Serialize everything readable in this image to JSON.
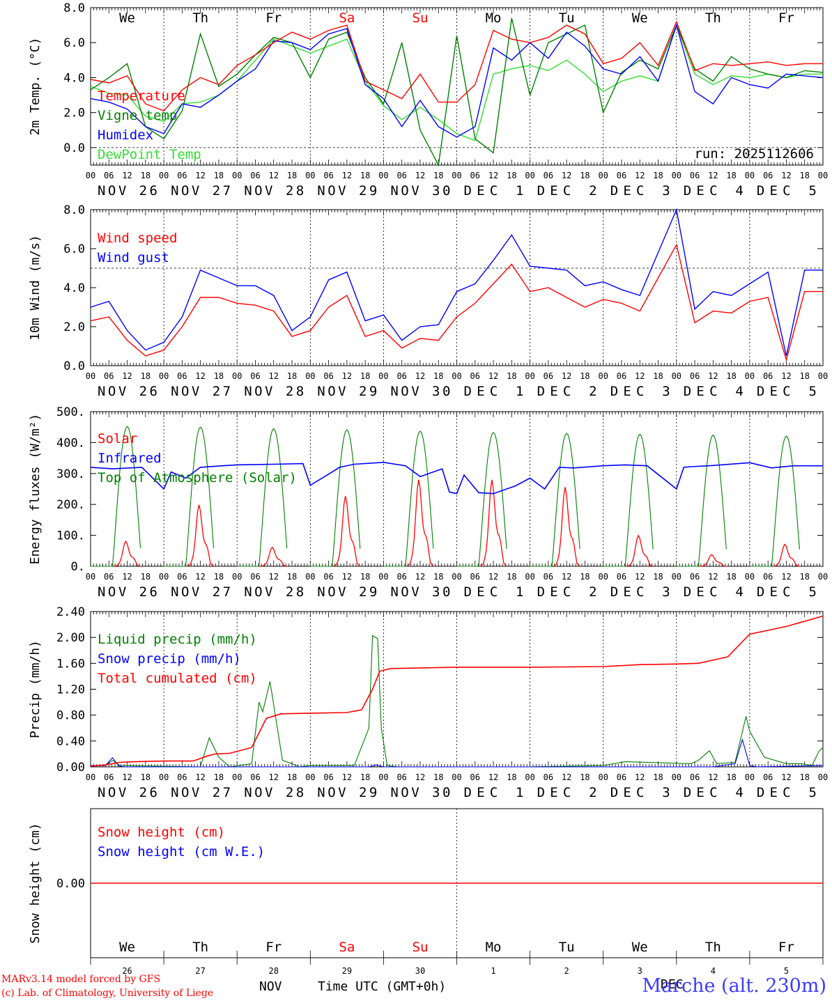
{
  "domain": "Chart",
  "run_label": "run: 2025112606",
  "footer": {
    "credit1": "MARv3.14 model forced by GFS",
    "credit2": "(c) Lab. of Climatology, University of Liege",
    "month_label": "NOV",
    "month_label2": "DEC",
    "time_label": "Time UTC (GMT+0h)",
    "station": "Marche (alt. 230m)"
  },
  "colors": {
    "red": "#ff0000",
    "green": "#008000",
    "blue": "#0000ff",
    "lightgreen": "#33dd33",
    "weekend": "#ff0000"
  },
  "hour_ticks": [
    "00",
    "06",
    "12",
    "18"
  ],
  "date_labels": [
    "NOV 26",
    "NOV 27",
    "NOV 28",
    "NOV 29",
    "NOV 30",
    "DEC 1",
    "DEC 2",
    "DEC 3",
    "DEC 4",
    "DEC 5"
  ],
  "weekdays": [
    {
      "label": "We",
      "weekend": false
    },
    {
      "label": "Th",
      "weekend": false
    },
    {
      "label": "Fr",
      "weekend": false
    },
    {
      "label": "Sa",
      "weekend": true
    },
    {
      "label": "Su",
      "weekend": true
    },
    {
      "label": "Mo",
      "weekend": false
    },
    {
      "label": "Tu",
      "weekend": false
    },
    {
      "label": "We",
      "weekend": false
    },
    {
      "label": "Th",
      "weekend": false
    },
    {
      "label": "Fr",
      "weekend": false
    }
  ],
  "day_numbers": [
    "26",
    "27",
    "28",
    "29",
    "30",
    "1",
    "2",
    "3",
    "4",
    "5"
  ],
  "chart_data": [
    {
      "type": "line",
      "id": "temp",
      "ylabel": "2m Temp. (°C)",
      "ylim": [
        -1.0,
        8.0
      ],
      "yticks": [
        "8.0",
        "6.0",
        "4.0",
        "2.0",
        "0.0"
      ],
      "ytick_values": [
        8,
        6,
        4,
        2,
        0
      ],
      "hline": 0,
      "x_days": [
        0,
        0.25,
        0.5,
        0.75,
        1,
        1.25,
        1.5,
        1.75,
        2,
        2.25,
        2.5,
        2.75,
        3,
        3.25,
        3.5,
        3.75,
        4,
        4.25,
        4.5,
        4.75,
        5,
        5.25,
        5.5,
        5.75,
        6,
        6.25,
        6.5,
        6.75,
        7,
        7.25,
        7.5,
        7.75,
        8,
        8.25,
        8.5,
        8.75,
        9,
        9.25,
        9.5,
        9.75,
        10
      ],
      "series": [
        {
          "name": "Temperature",
          "color": "red",
          "values": [
            3.9,
            3.7,
            4.1,
            2.5,
            2.1,
            3.3,
            4.0,
            3.6,
            4.7,
            5.3,
            6.0,
            6.6,
            6.2,
            6.7,
            7.0,
            3.8,
            3.3,
            2.8,
            4.2,
            2.6,
            2.6,
            3.6,
            6.7,
            6.2,
            6.0,
            6.3,
            7.0,
            6.5,
            4.8,
            5.1,
            6.0,
            4.7,
            7.2,
            4.4,
            4.8,
            4.7,
            4.8,
            4.9,
            4.7,
            4.8,
            4.8
          ]
        },
        {
          "name": "Vigne temp",
          "color": "green",
          "values": [
            3.3,
            4.0,
            4.8,
            1.2,
            0.5,
            2.1,
            6.5,
            3.5,
            4.2,
            5.3,
            6.3,
            6.0,
            4.0,
            6.2,
            6.6,
            4.0,
            2.5,
            6.0,
            1.0,
            -1.0,
            6.4,
            0.5,
            -0.3,
            7.4,
            3.0,
            6.0,
            6.5,
            7.0,
            2.0,
            4.3,
            5.0,
            4.5,
            7.0,
            4.5,
            3.8,
            5.2,
            4.5,
            4.2,
            4.0,
            4.4,
            4.3
          ]
        },
        {
          "name": "Humidex",
          "color": "blue",
          "values": [
            2.8,
            2.6,
            2.2,
            1.2,
            0.8,
            2.5,
            2.3,
            3.0,
            3.8,
            4.5,
            6.1,
            6.0,
            5.6,
            6.5,
            6.8,
            3.6,
            2.8,
            1.2,
            2.7,
            1.2,
            0.6,
            1.2,
            5.7,
            5.0,
            6.0,
            5.1,
            6.6,
            5.8,
            4.5,
            4.2,
            5.2,
            3.8,
            7.0,
            3.2,
            2.5,
            4.0,
            3.6,
            3.4,
            4.2,
            4.1,
            4.0
          ]
        },
        {
          "name": "DewPoint Temp",
          "color": "lightgreen",
          "values": [
            3.5,
            3.1,
            3.0,
            1.8,
            1.5,
            2.5,
            2.6,
            3.0,
            3.8,
            5.0,
            6.2,
            5.8,
            5.4,
            5.8,
            6.2,
            3.8,
            2.4,
            1.6,
            2.3,
            1.6,
            0.8,
            0.4,
            4.2,
            4.5,
            4.7,
            4.4,
            5.0,
            4.2,
            3.2,
            3.8,
            4.1,
            3.8,
            7.0,
            4.2,
            3.6,
            4.1,
            4.0,
            4.2,
            4.0,
            4.2,
            4.2
          ]
        }
      ]
    },
    {
      "type": "line",
      "id": "wind",
      "ylabel": "10m Wind (m/s)",
      "ylim": [
        0.0,
        8.0
      ],
      "yticks": [
        "8.0",
        "6.0",
        "4.0",
        "2.0",
        "0.0"
      ],
      "ytick_values": [
        8,
        6,
        4,
        2,
        0
      ],
      "hline": 5,
      "x_days": [
        0,
        0.25,
        0.5,
        0.75,
        1,
        1.25,
        1.5,
        1.75,
        2,
        2.25,
        2.5,
        2.75,
        3,
        3.25,
        3.5,
        3.75,
        4,
        4.25,
        4.5,
        4.75,
        5,
        5.25,
        5.5,
        5.75,
        6,
        6.25,
        6.5,
        6.75,
        7,
        7.25,
        7.5,
        7.75,
        8,
        8.25,
        8.5,
        8.75,
        9,
        9.25,
        9.5,
        9.75,
        10
      ],
      "series": [
        {
          "name": "Wind speed",
          "color": "red",
          "values": [
            2.3,
            2.5,
            1.3,
            0.5,
            0.8,
            2.0,
            3.5,
            3.5,
            3.2,
            3.1,
            2.8,
            1.5,
            1.8,
            3.0,
            3.6,
            1.5,
            1.8,
            0.9,
            1.4,
            1.3,
            2.5,
            3.2,
            4.2,
            5.2,
            3.8,
            4.0,
            3.5,
            3.0,
            3.4,
            3.2,
            2.8,
            4.5,
            6.2,
            2.2,
            2.8,
            2.7,
            3.3,
            3.5,
            0.3,
            3.8,
            3.8
          ]
        },
        {
          "name": "Wind gust",
          "color": "blue",
          "values": [
            3.0,
            3.3,
            1.8,
            0.8,
            1.2,
            2.5,
            4.9,
            4.5,
            4.1,
            4.1,
            3.6,
            1.8,
            2.5,
            4.4,
            4.8,
            2.3,
            2.6,
            1.3,
            2.0,
            2.1,
            3.8,
            4.2,
            5.4,
            6.7,
            5.1,
            5.0,
            4.9,
            4.1,
            4.3,
            3.9,
            3.6,
            5.8,
            8.0,
            2.9,
            3.8,
            3.6,
            4.2,
            4.8,
            0.5,
            4.9,
            4.9
          ]
        }
      ]
    },
    {
      "type": "line",
      "id": "energy",
      "ylabel": "Energy fluxes (W/m²)",
      "ylim": [
        0,
        500
      ],
      "yticks": [
        "500.",
        "400.",
        "300.",
        "200.",
        "100.",
        "0."
      ],
      "ytick_values": [
        500,
        400,
        300,
        200,
        100,
        0
      ],
      "solar_peaks": [
        85,
        210,
        65,
        240,
        295,
        295,
        270,
        105,
        40,
        75
      ],
      "toa_peaks": [
        452,
        450,
        445,
        441,
        437,
        433,
        430,
        427,
        424,
        421
      ],
      "infrared": {
        "x_days": [
          0,
          0.3,
          0.7,
          1.0,
          1.1,
          1.3,
          1.5,
          1.8,
          2.0,
          2.5,
          2.9,
          3.0,
          3.3,
          3.4,
          3.6,
          4.0,
          4.3,
          4.5,
          4.8,
          4.9,
          5.0,
          5.1,
          5.3,
          5.5,
          5.8,
          6.0,
          6.2,
          6.4,
          6.6,
          7.0,
          7.3,
          7.6,
          8.0,
          8.1,
          8.2,
          8.5,
          9.0,
          9.3,
          9.6,
          10.0
        ],
        "values": [
          320,
          315,
          320,
          250,
          305,
          285,
          320,
          325,
          328,
          330,
          332,
          262,
          305,
          320,
          330,
          336,
          325,
          290,
          315,
          240,
          235,
          295,
          238,
          235,
          260,
          285,
          250,
          320,
          318,
          325,
          328,
          325,
          250,
          320,
          322,
          326,
          335,
          318,
          325,
          325
        ]
      },
      "series": [
        {
          "name": "Solar",
          "color": "red"
        },
        {
          "name": "Infrared",
          "color": "blue"
        },
        {
          "name": "Top of Atmosphere (Solar)",
          "color": "green"
        }
      ]
    },
    {
      "type": "line",
      "id": "precip",
      "ylabel": "Precip (mm/h)",
      "ylim": [
        0.0,
        2.4
      ],
      "yticks": [
        "2.40",
        "2.00",
        "1.60",
        "1.20",
        "0.80",
        "0.40",
        "0.00"
      ],
      "ytick_values": [
        2.4,
        2.0,
        1.6,
        1.2,
        0.8,
        0.4,
        0.0
      ],
      "series": [
        {
          "name": "Liquid precip (mm/h)",
          "color": "green",
          "x_days": [
            0,
            0.2,
            0.3,
            0.4,
            1.5,
            1.62,
            1.75,
            1.9,
            2.2,
            2.3,
            2.35,
            2.45,
            2.55,
            2.62,
            2.75,
            2.85,
            3.0,
            3.6,
            3.8,
            3.85,
            3.92,
            3.97,
            4.05,
            4.2,
            6.0,
            7.0,
            7.3,
            8.2,
            8.3,
            8.45,
            8.55,
            8.8,
            8.95,
            9.0,
            9.2,
            9.5,
            9.7,
            9.85,
            9.95,
            10.0
          ],
          "values": [
            0.02,
            0.02,
            0.1,
            0.02,
            0.0,
            0.45,
            0.15,
            0.0,
            0.05,
            1.0,
            0.85,
            1.32,
            0.6,
            0.1,
            0.05,
            0.0,
            0.02,
            0.02,
            0.6,
            2.03,
            1.98,
            0.6,
            0.02,
            0.0,
            0.0,
            0.02,
            0.08,
            0.05,
            0.1,
            0.25,
            0.05,
            0.07,
            0.78,
            0.55,
            0.15,
            0.05,
            0.05,
            0.02,
            0.25,
            0.3
          ]
        },
        {
          "name": "Snow precip (mm/h)",
          "color": "blue",
          "x_days": [
            0,
            0.2,
            0.3,
            0.38,
            0.45,
            3.8,
            3.9,
            4.0,
            8.5,
            8.8,
            8.9,
            9.0,
            9.1,
            10.0
          ],
          "values": [
            0.02,
            0.02,
            0.14,
            0.02,
            0.0,
            0.0,
            0.03,
            0.0,
            0.0,
            0.05,
            0.42,
            0.02,
            0.0,
            0.02
          ]
        },
        {
          "name": "Total cumulated (cm)",
          "color": "red",
          "x_days": [
            0,
            0.2,
            0.4,
            0.6,
            1.0,
            1.4,
            1.6,
            1.7,
            1.9,
            2.2,
            2.4,
            2.6,
            3.0,
            3.5,
            3.7,
            3.85,
            3.95,
            4.1,
            5.0,
            6.0,
            7.0,
            7.5,
            8.0,
            8.3,
            8.7,
            9.0,
            9.5,
            10.0
          ],
          "values": [
            0.01,
            0.03,
            0.07,
            0.08,
            0.09,
            0.09,
            0.17,
            0.2,
            0.21,
            0.3,
            0.75,
            0.82,
            0.83,
            0.84,
            0.88,
            1.2,
            1.48,
            1.52,
            1.54,
            1.54,
            1.55,
            1.58,
            1.59,
            1.6,
            1.7,
            2.05,
            2.17,
            2.33
          ]
        }
      ]
    },
    {
      "type": "line",
      "id": "snow",
      "ylabel": "Snow height (cm)",
      "ylim": [
        -1,
        1
      ],
      "yticks": [
        "0.00"
      ],
      "ytick_values": [
        0
      ],
      "series": [
        {
          "name": "Snow height (cm)",
          "color": "red",
          "values": [
            0,
            0
          ]
        },
        {
          "name": "Snow height (cm W.E.)",
          "color": "blue",
          "values": [
            0,
            0
          ]
        }
      ]
    }
  ]
}
